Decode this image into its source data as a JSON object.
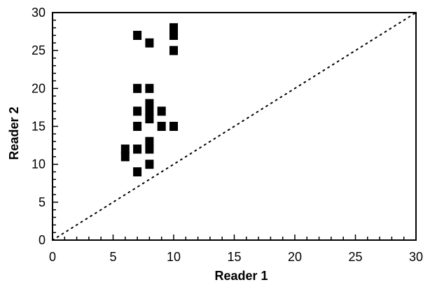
{
  "chart_data": {
    "type": "scatter",
    "title": "",
    "xlabel": "Reader 1",
    "ylabel": "Reader 2",
    "xlim": [
      0,
      30
    ],
    "ylim": [
      0,
      30
    ],
    "xticks": [
      0,
      5,
      10,
      15,
      20,
      25,
      30
    ],
    "yticks": [
      0,
      5,
      10,
      15,
      20,
      25,
      30
    ],
    "grid": false,
    "legend": "none",
    "marker": "square",
    "marker_color": "#000000",
    "reference_line": {
      "style": "dotted",
      "points": [
        [
          0,
          0
        ],
        [
          30,
          30
        ]
      ]
    },
    "points": [
      {
        "x": 6,
        "y": 11
      },
      {
        "x": 6,
        "y": 12
      },
      {
        "x": 7,
        "y": 9
      },
      {
        "x": 7,
        "y": 12
      },
      {
        "x": 7,
        "y": 15
      },
      {
        "x": 7,
        "y": 17
      },
      {
        "x": 7,
        "y": 20
      },
      {
        "x": 7,
        "y": 27
      },
      {
        "x": 8,
        "y": 10
      },
      {
        "x": 8,
        "y": 12
      },
      {
        "x": 8,
        "y": 13
      },
      {
        "x": 8,
        "y": 16
      },
      {
        "x": 8,
        "y": 17
      },
      {
        "x": 8,
        "y": 18
      },
      {
        "x": 8,
        "y": 20
      },
      {
        "x": 8,
        "y": 26
      },
      {
        "x": 9,
        "y": 15
      },
      {
        "x": 9,
        "y": 17
      },
      {
        "x": 10,
        "y": 15
      },
      {
        "x": 10,
        "y": 25
      },
      {
        "x": 10,
        "y": 27
      },
      {
        "x": 10,
        "y": 28
      }
    ]
  }
}
